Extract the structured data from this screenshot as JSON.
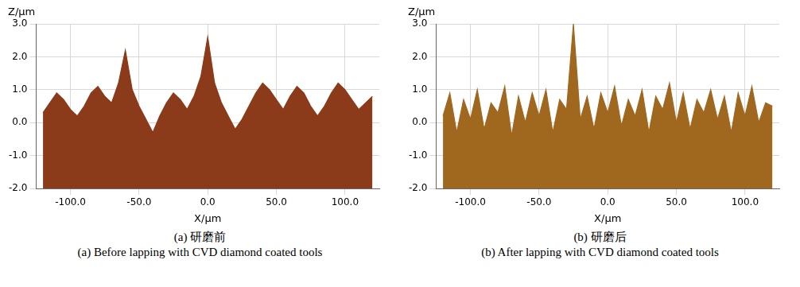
{
  "chart_data": [
    {
      "type": "area",
      "title": "(a) 研磨前",
      "subtitle": "(a) Before lapping with CVD diamond coated tools",
      "x_label": "X/µm",
      "y_label": "Z/µm",
      "color": "#8b3a1a",
      "grid": true,
      "x": [
        -120,
        -115,
        -110,
        -105,
        -100,
        -95,
        -90,
        -85,
        -80,
        -75,
        -70,
        -65,
        -60,
        -55,
        -50,
        -45,
        -40,
        -35,
        -30,
        -25,
        -20,
        -15,
        -10,
        -5,
        0,
        5,
        10,
        15,
        20,
        25,
        30,
        35,
        40,
        45,
        50,
        55,
        60,
        65,
        70,
        75,
        80,
        85,
        90,
        95,
        100,
        105,
        110,
        115,
        120
      ],
      "values": [
        0.3,
        0.6,
        0.9,
        0.7,
        0.4,
        0.2,
        0.5,
        0.9,
        1.1,
        0.8,
        0.6,
        1.2,
        2.2,
        1.0,
        0.5,
        0.1,
        -0.3,
        0.2,
        0.6,
        0.9,
        0.7,
        0.4,
        0.8,
        1.4,
        2.6,
        1.2,
        0.6,
        0.2,
        -0.2,
        0.1,
        0.5,
        0.9,
        1.2,
        1.0,
        0.7,
        0.4,
        0.8,
        1.1,
        0.9,
        0.5,
        0.2,
        0.5,
        0.9,
        1.2,
        1.0,
        0.7,
        0.4,
        0.6,
        0.8
      ],
      "xlim": [
        -125,
        125
      ],
      "xticks": [
        {
          "value": -100,
          "label": "-100.0"
        },
        {
          "value": -50,
          "label": "-50.0"
        },
        {
          "value": 0,
          "label": "0.0"
        },
        {
          "value": 50,
          "label": "50.0"
        },
        {
          "value": 100,
          "label": "100.0"
        }
      ],
      "ylim": [
        -2,
        3
      ],
      "yticks": [
        {
          "value": -2,
          "label": "-2.0"
        },
        {
          "value": -1,
          "label": "-1.0"
        },
        {
          "value": 0,
          "label": "0.0"
        },
        {
          "value": 1,
          "label": "1.0"
        },
        {
          "value": 2,
          "label": "2.0"
        },
        {
          "value": 3,
          "label": "3.0"
        }
      ]
    },
    {
      "type": "area",
      "title": "(b) 研磨后",
      "subtitle": "(b) After lapping with CVD diamond coated tools",
      "x_label": "X/µm",
      "y_label": "Z/µm",
      "color": "#a0671f",
      "grid": true,
      "x": [
        -120,
        -115,
        -110,
        -105,
        -100,
        -95,
        -90,
        -85,
        -80,
        -75,
        -70,
        -65,
        -60,
        -55,
        -50,
        -45,
        -40,
        -35,
        -30,
        -25,
        -20,
        -15,
        -10,
        -5,
        0,
        5,
        10,
        15,
        20,
        25,
        30,
        35,
        40,
        45,
        50,
        55,
        60,
        65,
        70,
        75,
        80,
        85,
        90,
        95,
        100,
        105,
        110,
        115,
        120
      ],
      "values": [
        0.2,
        0.9,
        -0.3,
        0.7,
        0.1,
        1.0,
        -0.2,
        0.6,
        0.3,
        1.1,
        -0.4,
        0.8,
        0.0,
        0.9,
        0.2,
        1.0,
        -0.3,
        0.7,
        0.4,
        3.0,
        0.1,
        0.8,
        -0.2,
        0.9,
        0.3,
        1.1,
        -0.1,
        0.7,
        0.2,
        1.0,
        -0.3,
        0.8,
        0.4,
        1.2,
        0.0,
        0.9,
        -0.2,
        0.7,
        0.3,
        1.0,
        0.1,
        0.8,
        -0.3,
        0.9,
        0.2,
        1.1,
        0.0,
        0.6,
        0.5
      ],
      "xlim": [
        -125,
        125
      ],
      "xticks": [
        {
          "value": -100,
          "label": "-100.0"
        },
        {
          "value": -50,
          "label": "-50.0"
        },
        {
          "value": 0,
          "label": "0.0"
        },
        {
          "value": 50,
          "label": "50.0"
        },
        {
          "value": 100,
          "label": "100.0"
        }
      ],
      "ylim": [
        -2,
        3
      ],
      "yticks": [
        {
          "value": -2,
          "label": "-2.0"
        },
        {
          "value": -1,
          "label": "-1.0"
        },
        {
          "value": 0,
          "label": "0.0"
        },
        {
          "value": 1,
          "label": "1.0"
        },
        {
          "value": 2,
          "label": "2.0"
        },
        {
          "value": 3,
          "label": "3.0"
        }
      ]
    }
  ]
}
